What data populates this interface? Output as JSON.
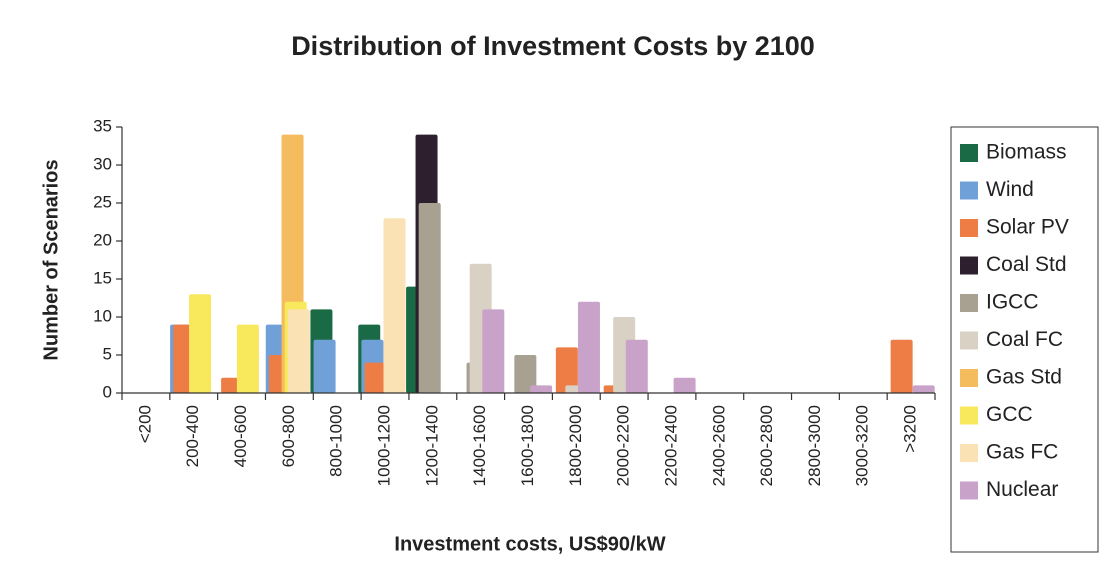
{
  "chart_data": {
    "type": "bar",
    "title": "Distribution of Investment Costs by 2100",
    "x_label": "Investment costs, US$90/kW",
    "y_label": "Number of Scenarios",
    "categories": [
      "<200",
      "200-400",
      "400-600",
      "600-800",
      "800-1000",
      "1000-1200",
      "1200-1400",
      "1400-1600",
      "1600-1800",
      "1800-2000",
      "2000-2200",
      "2200-2400",
      "2400-2600",
      "2600-2800",
      "2800-3000",
      "3000-3200",
      ">3200"
    ],
    "series": [
      {
        "name": "Biomass",
        "color": "#1a6b45",
        "values": [
          0,
          0,
          0,
          0,
          11,
          9,
          14,
          0,
          0,
          0,
          0,
          0,
          0,
          0,
          0,
          0,
          0
        ]
      },
      {
        "name": "Wind",
        "color": "#70a0d8",
        "values": [
          0,
          9,
          0,
          9,
          7,
          7,
          0,
          0,
          0,
          0,
          0,
          0,
          0,
          0,
          0,
          0,
          0
        ]
      },
      {
        "name": "Solar PV",
        "color": "#ed7d45",
        "values": [
          0,
          9,
          2,
          5,
          0,
          4,
          0,
          0,
          0,
          6,
          1,
          0,
          0,
          0,
          0,
          0,
          7
        ]
      },
      {
        "name": "Coal Std",
        "color": "#2e1f2e",
        "values": [
          0,
          0,
          0,
          0,
          0,
          0,
          34,
          0,
          0,
          0,
          0,
          0,
          0,
          0,
          0,
          0,
          0
        ]
      },
      {
        "name": "IGCC",
        "color": "#a8a090",
        "values": [
          0,
          0,
          0,
          0,
          0,
          0,
          25,
          4,
          5,
          0,
          0,
          0,
          0,
          0,
          0,
          0,
          0
        ]
      },
      {
        "name": "Coal FC",
        "color": "#dad1c5",
        "values": [
          0,
          0,
          0,
          0,
          0,
          0,
          0,
          17,
          0,
          1,
          10,
          0,
          0,
          0,
          0,
          0,
          0
        ]
      },
      {
        "name": "Gas Std",
        "color": "#f4bc5c",
        "values": [
          0,
          0,
          0,
          34,
          0,
          0,
          0,
          0,
          0,
          0,
          0,
          0,
          0,
          0,
          0,
          0,
          0
        ]
      },
      {
        "name": "GCC",
        "color": "#f7e85c",
        "values": [
          0,
          13,
          9,
          12,
          0,
          0,
          0,
          0,
          0,
          0,
          0,
          0,
          0,
          0,
          0,
          0,
          0
        ]
      },
      {
        "name": "Gas FC",
        "color": "#fbe2b4",
        "values": [
          0,
          0,
          0,
          11,
          0,
          23,
          0,
          0,
          0,
          0,
          0,
          0,
          0,
          0,
          0,
          0,
          0
        ]
      },
      {
        "name": "Nuclear",
        "color": "#c8a2c8",
        "values": [
          0,
          0,
          0,
          0,
          0,
          0,
          0,
          11,
          1,
          12,
          7,
          2,
          0,
          0,
          0,
          0,
          1
        ]
      }
    ],
    "ylim": [
      0,
      35
    ],
    "yticks": [
      0,
      5,
      10,
      15,
      20,
      25,
      30,
      35
    ],
    "grid": false,
    "legend": "right"
  }
}
